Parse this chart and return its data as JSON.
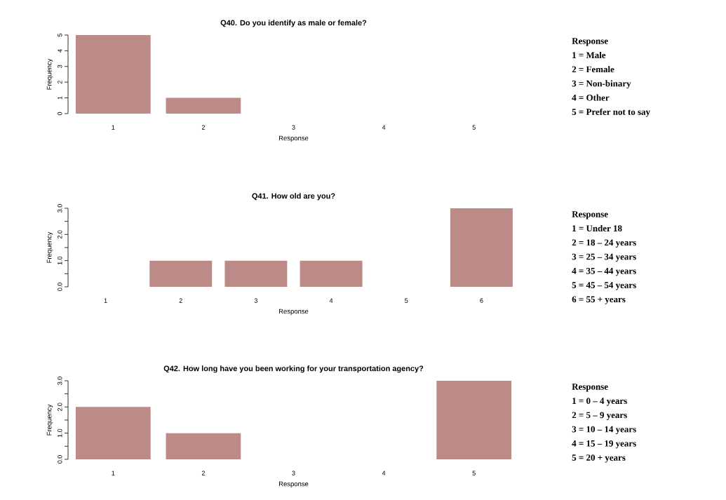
{
  "chart_data": [
    {
      "type": "bar",
      "title": "Q40. Do you identify as male or female?",
      "xlabel": "Response",
      "ylabel": "Frequency",
      "categories": [
        "1",
        "2",
        "3",
        "4",
        "5"
      ],
      "values": [
        5,
        1,
        0,
        0,
        0
      ],
      "color": "#bc8a87",
      "ylim": [
        0,
        5
      ],
      "yticks": [
        0,
        1,
        2,
        3,
        4,
        5
      ],
      "annotations": [
        "Response",
        "1 = Male",
        "2 = Female",
        "3 = Non-binary",
        "4 = Other",
        "5 = Prefer not to say"
      ]
    },
    {
      "type": "bar",
      "title": "Q41. How old are you?",
      "xlabel": "Response",
      "ylabel": "Frequency",
      "categories": [
        "1",
        "2",
        "3",
        "4",
        "5",
        "6"
      ],
      "values": [
        0,
        1,
        1,
        1,
        0,
        3
      ],
      "color": "#bc8a87",
      "ylim": [
        0,
        3
      ],
      "yticks": [
        {
          "value": 0,
          "label": "0.0"
        },
        {
          "value": 0.5,
          "label": null
        },
        {
          "value": 1,
          "label": "1.0"
        },
        {
          "value": 1.5,
          "label": null
        },
        {
          "value": 2,
          "label": "2.0"
        },
        {
          "value": 2.5,
          "label": null
        },
        {
          "value": 3,
          "label": "3.0"
        }
      ],
      "annotations": [
        "Response",
        "1 = Under 18",
        "2 = 18 – 24 years",
        "3 = 25 – 34 years",
        "4 = 35 – 44 years",
        "5 = 45 – 54 years",
        "6 = 55 + years"
      ]
    },
    {
      "type": "bar",
      "title": "Q42. How long have you been working for your transportation agency?",
      "xlabel": "Response",
      "ylabel": "Frequency",
      "categories": [
        "1",
        "2",
        "3",
        "4",
        "5"
      ],
      "values": [
        2,
        1,
        0,
        0,
        3
      ],
      "color": "#bc8a87",
      "ylim": [
        0,
        3
      ],
      "yticks": [
        {
          "value": 0,
          "label": "0.0"
        },
        {
          "value": 0.5,
          "label": null
        },
        {
          "value": 1,
          "label": "1.0"
        },
        {
          "value": 1.5,
          "label": null
        },
        {
          "value": 2,
          "label": "2.0"
        },
        {
          "value": 2.5,
          "label": null
        },
        {
          "value": 3,
          "label": "3.0"
        }
      ],
      "annotations": [
        "Response",
        "1 = 0 – 4 years",
        "2 = 5 – 9 years",
        "3 = 10 – 14 years",
        "4 = 15 – 19 years",
        "5 = 20 + years"
      ]
    }
  ]
}
